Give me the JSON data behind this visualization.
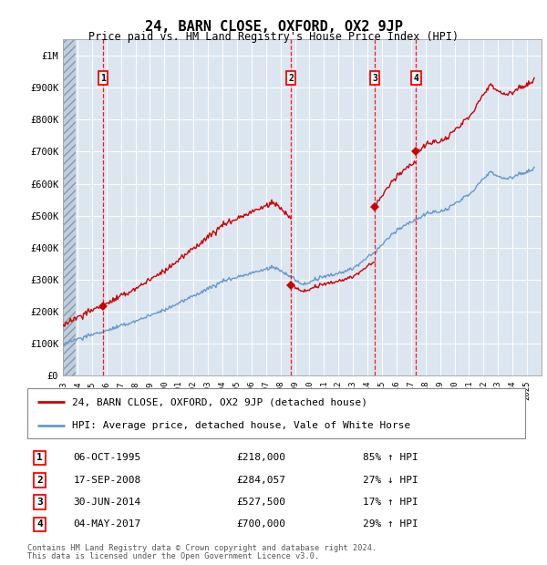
{
  "title": "24, BARN CLOSE, OXFORD, OX2 9JP",
  "subtitle": "Price paid vs. HM Land Registry's House Price Index (HPI)",
  "ylabel_values": [
    "£0",
    "£100K",
    "£200K",
    "£300K",
    "£400K",
    "£500K",
    "£600K",
    "£700K",
    "£800K",
    "£900K",
    "£1M"
  ],
  "y_ticks": [
    0,
    100000,
    200000,
    300000,
    400000,
    500000,
    600000,
    700000,
    800000,
    900000,
    1000000
  ],
  "ylim": [
    0,
    1050000
  ],
  "x_start_year": 1993,
  "x_end_year": 2026,
  "trans_dates": [
    1995.77,
    2008.72,
    2014.5,
    2017.34
  ],
  "trans_prices": [
    218000,
    284057,
    527500,
    700000
  ],
  "legend_line1": "24, BARN CLOSE, OXFORD, OX2 9JP (detached house)",
  "legend_line2": "HPI: Average price, detached house, Vale of White Horse",
  "table_entries": [
    {
      "num": "1",
      "date": "06-OCT-1995",
      "price": "£218,000",
      "info": "85% ↑ HPI"
    },
    {
      "num": "2",
      "date": "17-SEP-2008",
      "price": "£284,057",
      "info": "27% ↓ HPI"
    },
    {
      "num": "3",
      "date": "30-JUN-2014",
      "price": "£527,500",
      "info": "17% ↑ HPI"
    },
    {
      "num": "4",
      "date": "04-MAY-2017",
      "price": "£700,000",
      "info": "29% ↑ HPI"
    }
  ],
  "footer1": "Contains HM Land Registry data © Crown copyright and database right 2024.",
  "footer2": "This data is licensed under the Open Government Licence v3.0.",
  "hpi_color": "#6699cc",
  "price_color": "#cc0000",
  "background_plot": "#dce6f1",
  "hatch_color": "#c0cfe0"
}
